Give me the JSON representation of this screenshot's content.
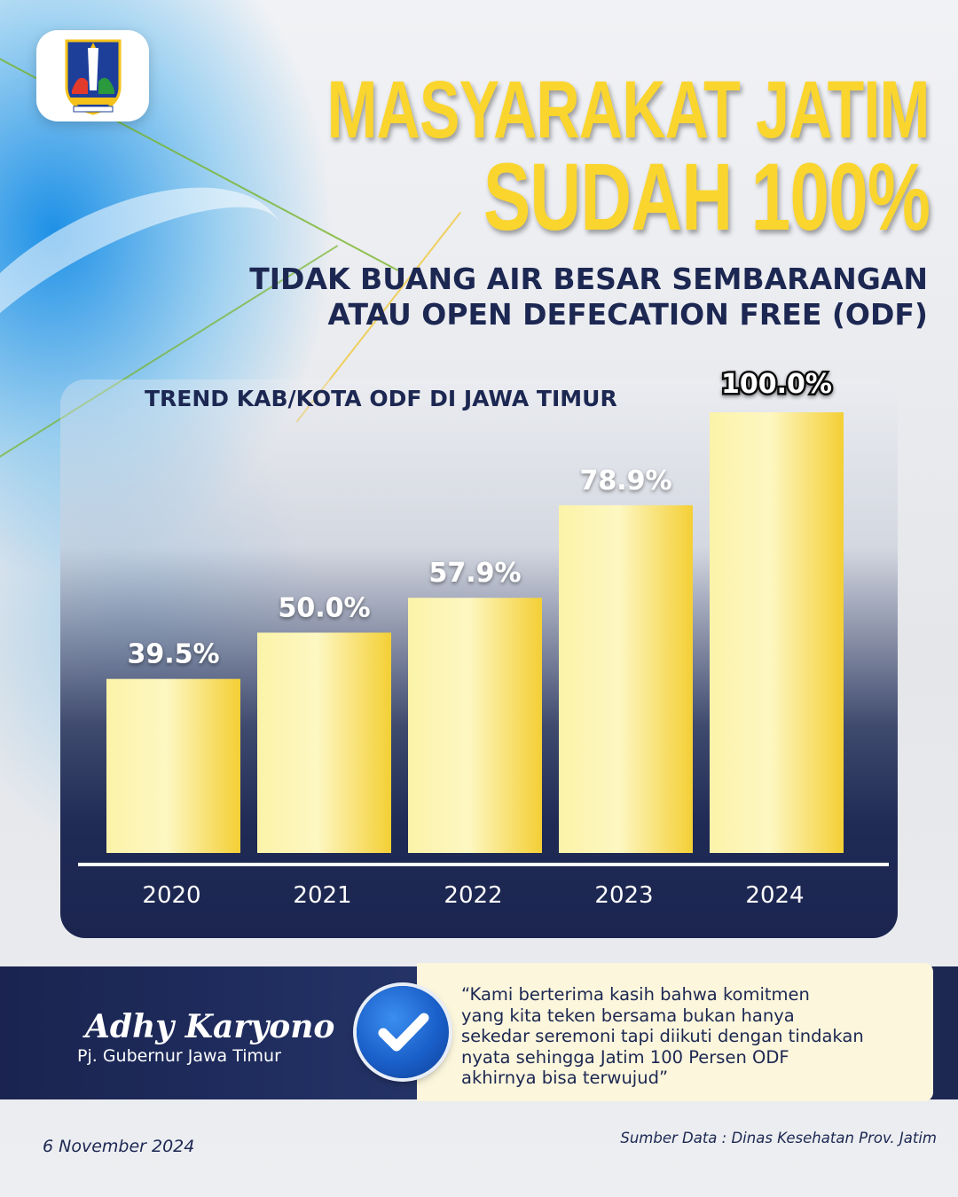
{
  "header": {
    "title_line1": "MASYARAKAT JATIM",
    "title_line2": "SUDAH 100%",
    "subtitle_line1": "TIDAK BUANG AIR BESAR SEMBARANGAN",
    "subtitle_line2": "ATAU OPEN DEFECATION FREE (ODF)"
  },
  "chart_data": {
    "type": "bar",
    "title": "TREND KAB/KOTA ODF DI JAWA TIMUR",
    "categories": [
      "2020",
      "2021",
      "2022",
      "2023",
      "2024"
    ],
    "values": [
      39.5,
      50.0,
      57.9,
      78.9,
      100.0
    ],
    "value_labels": [
      "39.5%",
      "50.0%",
      "57.9%",
      "78.9%",
      "100.0%"
    ],
    "ylim": [
      0,
      100
    ],
    "xlabel": "",
    "ylabel": "",
    "grid": false,
    "colors": {
      "bar_light": "#fdf6b5",
      "bar_dark": "#f7d53a",
      "axis": "#ffffff",
      "label": "#ffffff"
    }
  },
  "quote": {
    "name": "Adhy Karyono",
    "role": "Pj. Gubernur Jawa Timur",
    "text": "“Kami berterima kasih bahwa komitmen\nyang kita teken bersama bukan hanya\nsekedar seremoni tapi diikuti dengan tindakan\nnyata sehingga Jatim 100 Persen ODF\nakhirnya bisa terwujud”"
  },
  "footer": {
    "date": "6 November 2024",
    "source": "Sumber Data :  Dinas Kesehatan Prov. Jatim"
  },
  "icons": {
    "logo": "jawa-timur-emblem-icon",
    "check": "check-icon"
  },
  "colors": {
    "accent_yellow": "#fad52e",
    "navy": "#1c2752",
    "quote_bg": "#fbf6dc"
  }
}
